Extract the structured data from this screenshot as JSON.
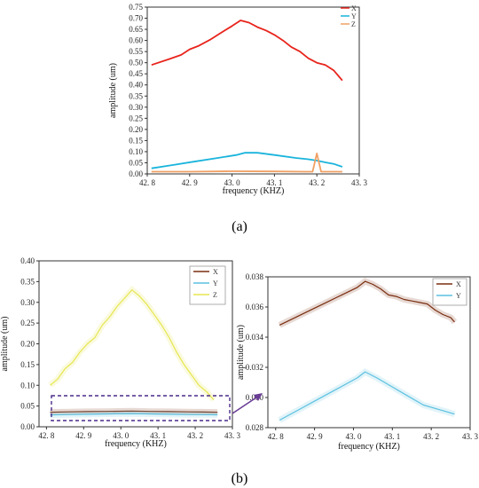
{
  "figure": {
    "caption_a": "(a)",
    "caption_b": "(b)"
  },
  "colors": {
    "X_a": "#e8241c",
    "Y_a": "#19b4dc",
    "Z_a": "#f0a064",
    "X_b": "#7a2e10",
    "Y_b": "#5cc0e0",
    "Z_b": "#e6e650",
    "box": "#4a2a8a",
    "arrow": "#6a3c96"
  },
  "chart_data": [
    {
      "type": "line",
      "panel": "a",
      "xlabel": "frequency (KHZ)",
      "ylabel": "amplitude (um)",
      "xlim": [
        42.8,
        43.3
      ],
      "ylim": [
        0,
        0.75
      ],
      "xticks": [
        "42. 8",
        "42. 9",
        "43. 0",
        "43. 1",
        "43. 2",
        "43. 3"
      ],
      "xtick_values": [
        42.8,
        42.9,
        43.0,
        43.1,
        43.2,
        43.3
      ],
      "yticks": [
        "0.00",
        "0.05",
        "0.10",
        "0.15",
        "0.20",
        "0.25",
        "0.30",
        "0.35",
        "0.40",
        "0.45",
        "0.50",
        "0.55",
        "0.60",
        "0.65",
        "0.70",
        "0.75"
      ],
      "ytick_values": [
        0,
        0.05,
        0.1,
        0.15,
        0.2,
        0.25,
        0.3,
        0.35,
        0.4,
        0.45,
        0.5,
        0.55,
        0.6,
        0.65,
        0.7,
        0.75
      ],
      "legend_position": "top-right",
      "series": [
        {
          "name": "X",
          "color_key": "X_a",
          "x": [
            42.81,
            42.85,
            42.88,
            42.9,
            42.92,
            42.95,
            42.97,
            43.0,
            43.02,
            43.04,
            43.06,
            43.08,
            43.1,
            43.12,
            43.14,
            43.16,
            43.18,
            43.2,
            43.22,
            43.24,
            43.26
          ],
          "y": [
            0.49,
            0.515,
            0.535,
            0.56,
            0.575,
            0.605,
            0.63,
            0.665,
            0.69,
            0.68,
            0.66,
            0.645,
            0.625,
            0.6,
            0.57,
            0.55,
            0.52,
            0.5,
            0.49,
            0.465,
            0.42
          ]
        },
        {
          "name": "Y",
          "color_key": "Y_a",
          "x": [
            42.81,
            42.86,
            42.91,
            42.96,
            43.01,
            43.03,
            43.06,
            43.1,
            43.15,
            43.18,
            43.2,
            43.22,
            43.24,
            43.26
          ],
          "y": [
            0.025,
            0.04,
            0.055,
            0.07,
            0.085,
            0.095,
            0.095,
            0.085,
            0.072,
            0.066,
            0.06,
            0.052,
            0.045,
            0.032
          ]
        },
        {
          "name": "Z",
          "color_key": "Z_a",
          "x": [
            42.81,
            42.9,
            43.0,
            43.1,
            43.17,
            43.19,
            43.2,
            43.21,
            43.23,
            43.26
          ],
          "y": [
            0.01,
            0.01,
            0.012,
            0.011,
            0.01,
            0.01,
            0.092,
            0.01,
            0.01,
            0.01
          ]
        }
      ]
    },
    {
      "type": "line",
      "panel": "b-left",
      "xlabel": "frequency (KHZ)",
      "ylabel": "amplitude (um)",
      "xlim": [
        42.78,
        43.3
      ],
      "ylim": [
        0,
        0.4
      ],
      "xticks": [
        "42. 8",
        "42. 9",
        "43. 0",
        "43. 1",
        "43. 2",
        "43. 3"
      ],
      "xtick_values": [
        42.8,
        42.9,
        43.0,
        43.1,
        43.2,
        43.3
      ],
      "yticks": [
        "0.00",
        "0.05",
        "0.10",
        "0.15",
        "0.20",
        "0.25",
        "0.30",
        "0.35",
        "0.40"
      ],
      "ytick_values": [
        0,
        0.05,
        0.1,
        0.15,
        0.2,
        0.25,
        0.3,
        0.35,
        0.4
      ],
      "legend_position": "top-right",
      "series": [
        {
          "name": "X",
          "color_key": "X_b",
          "x": [
            42.81,
            42.86,
            42.91,
            42.96,
            43.03,
            43.08,
            43.13,
            43.18,
            43.22,
            43.26
          ],
          "y": [
            0.035,
            0.036,
            0.0365,
            0.037,
            0.0378,
            0.037,
            0.0365,
            0.036,
            0.0355,
            0.035
          ]
        },
        {
          "name": "Y",
          "color_key": "Y_b",
          "x": [
            42.81,
            42.86,
            42.91,
            42.96,
            43.03,
            43.08,
            43.13,
            43.18,
            43.22,
            43.26
          ],
          "y": [
            0.0285,
            0.0295,
            0.0302,
            0.031,
            0.0318,
            0.031,
            0.0302,
            0.0295,
            0.0292,
            0.0288
          ]
        },
        {
          "name": "Z",
          "color_key": "Z_b",
          "x": [
            42.81,
            42.83,
            42.85,
            42.87,
            42.89,
            42.91,
            42.93,
            42.95,
            42.97,
            42.99,
            43.01,
            43.03,
            43.05,
            43.07,
            43.09,
            43.11,
            43.13,
            43.15,
            43.17,
            43.19,
            43.21,
            43.23,
            43.25
          ],
          "y": [
            0.1,
            0.115,
            0.14,
            0.155,
            0.18,
            0.2,
            0.215,
            0.245,
            0.265,
            0.29,
            0.31,
            0.33,
            0.315,
            0.295,
            0.27,
            0.245,
            0.215,
            0.18,
            0.15,
            0.125,
            0.1,
            0.085,
            0.065
          ]
        }
      ]
    },
    {
      "type": "line",
      "panel": "b-right",
      "xlabel": "frequency (KHZ)",
      "ylabel": "amplitude (um)",
      "xlim": [
        42.78,
        43.3
      ],
      "ylim": [
        0.028,
        0.038
      ],
      "xticks": [
        "42. 8",
        "42. 9",
        "43. 0",
        "43. 1",
        "43. 2",
        "43. 3"
      ],
      "xtick_values": [
        42.8,
        42.9,
        43.0,
        43.1,
        43.2,
        43.3
      ],
      "yticks": [
        "0.028",
        "0.030",
        "0.032",
        "0.034",
        "0.036",
        "0.038"
      ],
      "ytick_values": [
        0.028,
        0.03,
        0.032,
        0.034,
        0.036,
        0.038
      ],
      "legend_position": "top-right",
      "series": [
        {
          "name": "X",
          "color_key": "X_b",
          "x": [
            42.81,
            42.85,
            42.89,
            42.93,
            42.97,
            43.01,
            43.03,
            43.05,
            43.07,
            43.09,
            43.11,
            43.13,
            43.15,
            43.17,
            43.19,
            43.21,
            43.23,
            43.25,
            43.26
          ],
          "y": [
            0.0348,
            0.0353,
            0.0358,
            0.0363,
            0.0368,
            0.0373,
            0.0377,
            0.0375,
            0.0372,
            0.0368,
            0.0367,
            0.0365,
            0.0364,
            0.0363,
            0.0362,
            0.0358,
            0.0355,
            0.0353,
            0.035
          ]
        },
        {
          "name": "Y",
          "color_key": "Y_b",
          "x": [
            42.81,
            42.86,
            42.91,
            42.96,
            43.01,
            43.03,
            43.06,
            43.1,
            43.14,
            43.18,
            43.22,
            43.26
          ],
          "y": [
            0.0285,
            0.0292,
            0.0299,
            0.0306,
            0.0313,
            0.0317,
            0.0313,
            0.0307,
            0.0301,
            0.0295,
            0.0292,
            0.0289
          ]
        }
      ]
    }
  ]
}
